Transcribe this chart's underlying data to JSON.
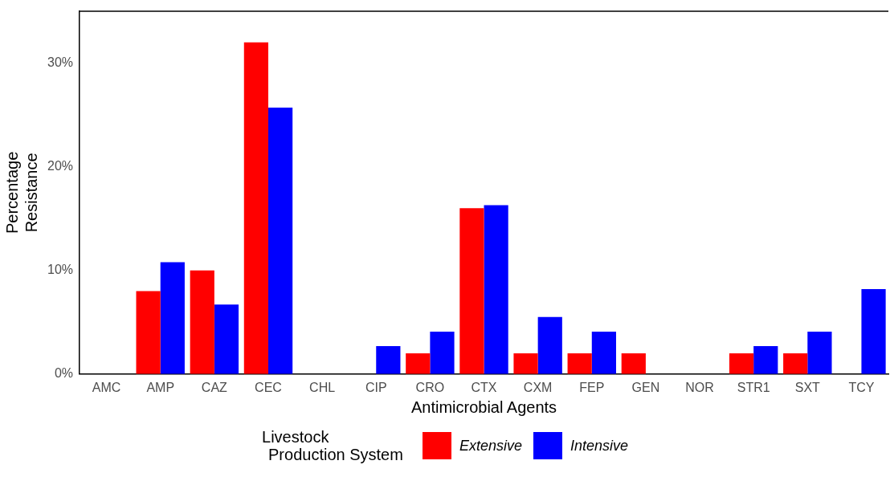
{
  "chart_data": {
    "type": "bar",
    "xlabel": "Antimicrobial Agents",
    "ylabel": [
      "Percentage",
      "Resistance"
    ],
    "legend_title": [
      "Livestock",
      "Production System"
    ],
    "categories": [
      "AMC",
      "AMP",
      "CAZ",
      "CEC",
      "CHL",
      "CIP",
      "CRO",
      "CTX",
      "CXM",
      "FEP",
      "GEN",
      "NOR",
      "STR1",
      "SXT",
      "TCY"
    ],
    "series": [
      {
        "name": "Extensive",
        "color": "#ff0000",
        "values": [
          0,
          8,
          10,
          32,
          0,
          0,
          2,
          16,
          2,
          2,
          2,
          0,
          2,
          2,
          0
        ]
      },
      {
        "name": "Intensive",
        "color": "#0000ff",
        "values": [
          0,
          10.8,
          6.7,
          25.7,
          0,
          2.7,
          4.1,
          16.3,
          5.5,
          4.1,
          0,
          0,
          2.7,
          4.1,
          8.2
        ]
      }
    ],
    "ylim": [
      0,
      35
    ],
    "yticks": [
      {
        "value": 0,
        "label": "0%"
      },
      {
        "value": 10,
        "label": "10%"
      },
      {
        "value": 20,
        "label": "20%"
      },
      {
        "value": 30,
        "label": "30%"
      }
    ],
    "grid": false,
    "legend": "bottom"
  }
}
